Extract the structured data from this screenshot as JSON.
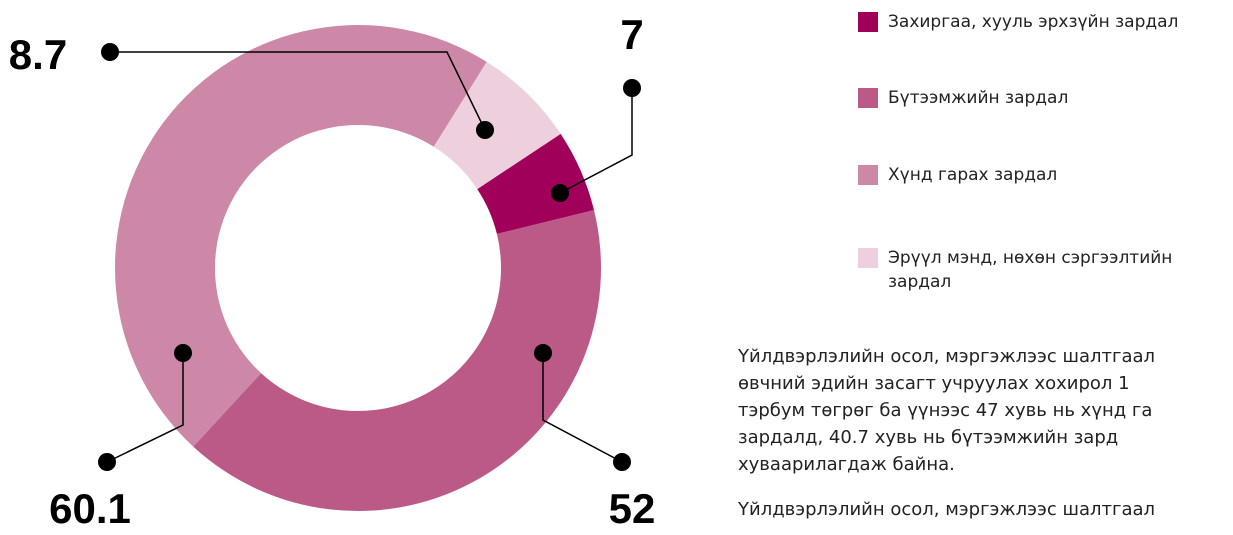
{
  "chart_data": {
    "type": "donut",
    "categories": [
      "Захиргаа, хууль эрхзүйн зардал",
      "Бүтээмжийн зардал",
      "Хүнд гарах зардал",
      "Эрүүл мэнд, нөхөн сэргээлтийн зардал"
    ],
    "values": [
      7,
      52,
      60.1,
      8.7
    ],
    "colors": [
      "#a0005a",
      "#bb5a86",
      "#cd88a8",
      "#eecfdd"
    ]
  },
  "text": {
    "paragraphs": [
      [
        "Үйлдвэрлэлийн осол, мэргэжлээс шалтгаал",
        "өвчний эдийн засагт учруулах хохирол 1",
        "тэрбум төгрөг ба үүнээс 47 хувь нь хүнд га",
        "зардалд, 40.7 хувь нь бүтээмжийн зард",
        "хуваарилагдаж байна."
      ],
      [
        "Үйлдвэрлэлийн осол, мэргэжлээс шалтгаал"
      ]
    ]
  }
}
